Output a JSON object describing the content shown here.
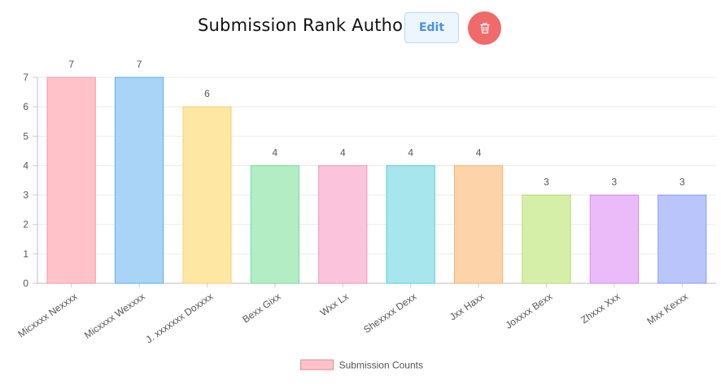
{
  "header": {
    "title": "Submission Rank Author",
    "edit_label": "Edit",
    "delete_icon": "trash-icon"
  },
  "chart_data": {
    "type": "bar",
    "categories": [
      "Micxxxx Nexxxx",
      "Micxxxx Wexxxx",
      "J. xxxxxxx Doxxxx",
      "Bexx Gixx",
      "Wxx Lx",
      "Shexxxx Dexx",
      "Jxx Haxx",
      "Joxxxx Bexx",
      "Zhxxx Xxx",
      "Mxx Kexxx"
    ],
    "series": [
      {
        "name": "Submission Counts",
        "values": [
          7,
          7,
          6,
          4,
          4,
          4,
          4,
          3,
          3,
          3
        ],
        "fill_colors": [
          "#ffc2c9",
          "#a9d4f7",
          "#fde7a3",
          "#b2edc4",
          "#fbc4dc",
          "#a7e6ec",
          "#fdd4a9",
          "#d6efa8",
          "#ebbaf8",
          "#b9c5fb"
        ],
        "border_colors": [
          "#f59aa5",
          "#5aaef0",
          "#f3d27a",
          "#7ed89b",
          "#ef95bf",
          "#55cfda",
          "#f4b377",
          "#b3dd71",
          "#d68af0",
          "#8c9ef6"
        ]
      }
    ],
    "yticks": [
      "0",
      "1",
      "2",
      "3",
      "4",
      "5",
      "6",
      "7"
    ],
    "ylim": [
      0,
      7
    ],
    "grid": true,
    "legend_position": "bottom",
    "legend_fill": "#ffc2c9",
    "legend_border": "#e08a95"
  }
}
